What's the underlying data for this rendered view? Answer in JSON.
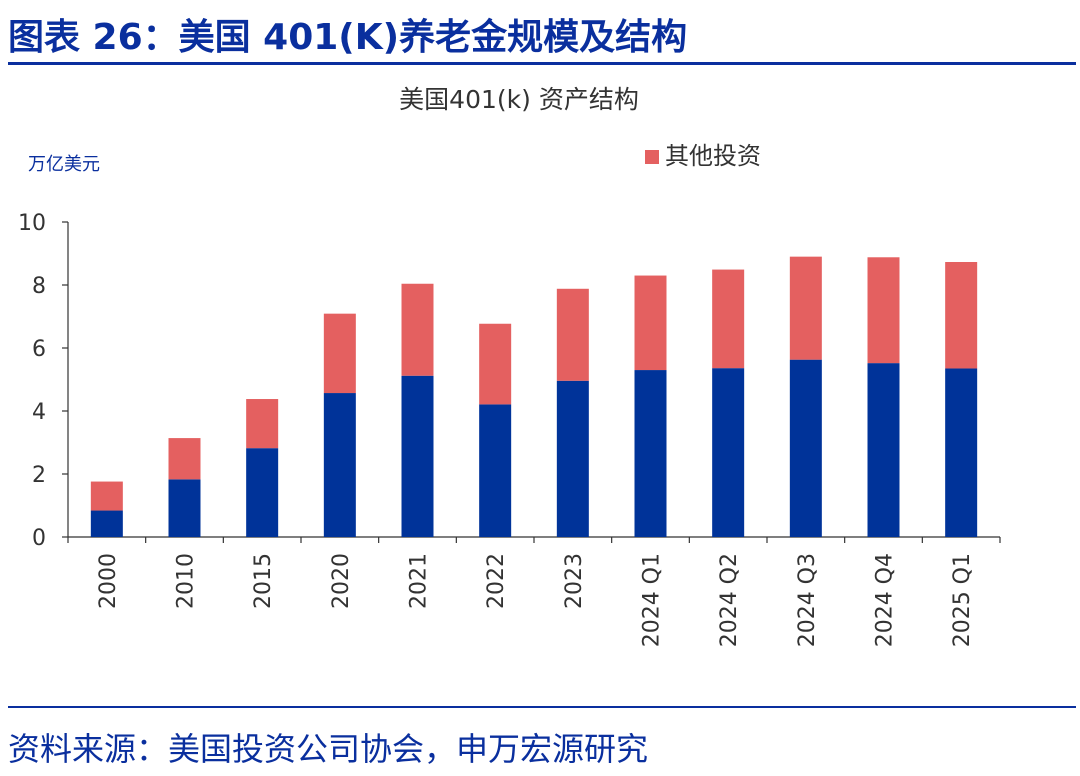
{
  "figure_title": "图表 26：美国 401(K)养老金规模及结构",
  "source_note": "资料来源：美国投资公司协会，申万宏源研究",
  "chart_data": {
    "type": "bar",
    "stacked": true,
    "title": "美国401(k) 资产结构",
    "unit_label": "万亿美元",
    "xlabel": "",
    "ylabel": "",
    "ylim": [
      0,
      10
    ],
    "yticks": [
      0,
      2,
      4,
      6,
      8,
      10
    ],
    "grid": false,
    "legend_position": "top-right",
    "categories": [
      "2000",
      "2010",
      "2015",
      "2020",
      "2021",
      "2022",
      "2023",
      "2024 Q1",
      "2024 Q2",
      "2024 Q3",
      "2024 Q4",
      "2025 Q1"
    ],
    "series": [
      {
        "name": "",
        "color": "#003399",
        "values": [
          0.84,
          1.83,
          2.82,
          4.57,
          5.12,
          4.21,
          4.96,
          5.3,
          5.36,
          5.63,
          5.52,
          5.35
        ]
      },
      {
        "name": "其他投资",
        "color": "#e46060",
        "values": [
          0.92,
          1.31,
          1.56,
          2.52,
          2.92,
          2.56,
          2.92,
          3.0,
          3.13,
          3.27,
          3.36,
          3.38
        ]
      }
    ]
  }
}
